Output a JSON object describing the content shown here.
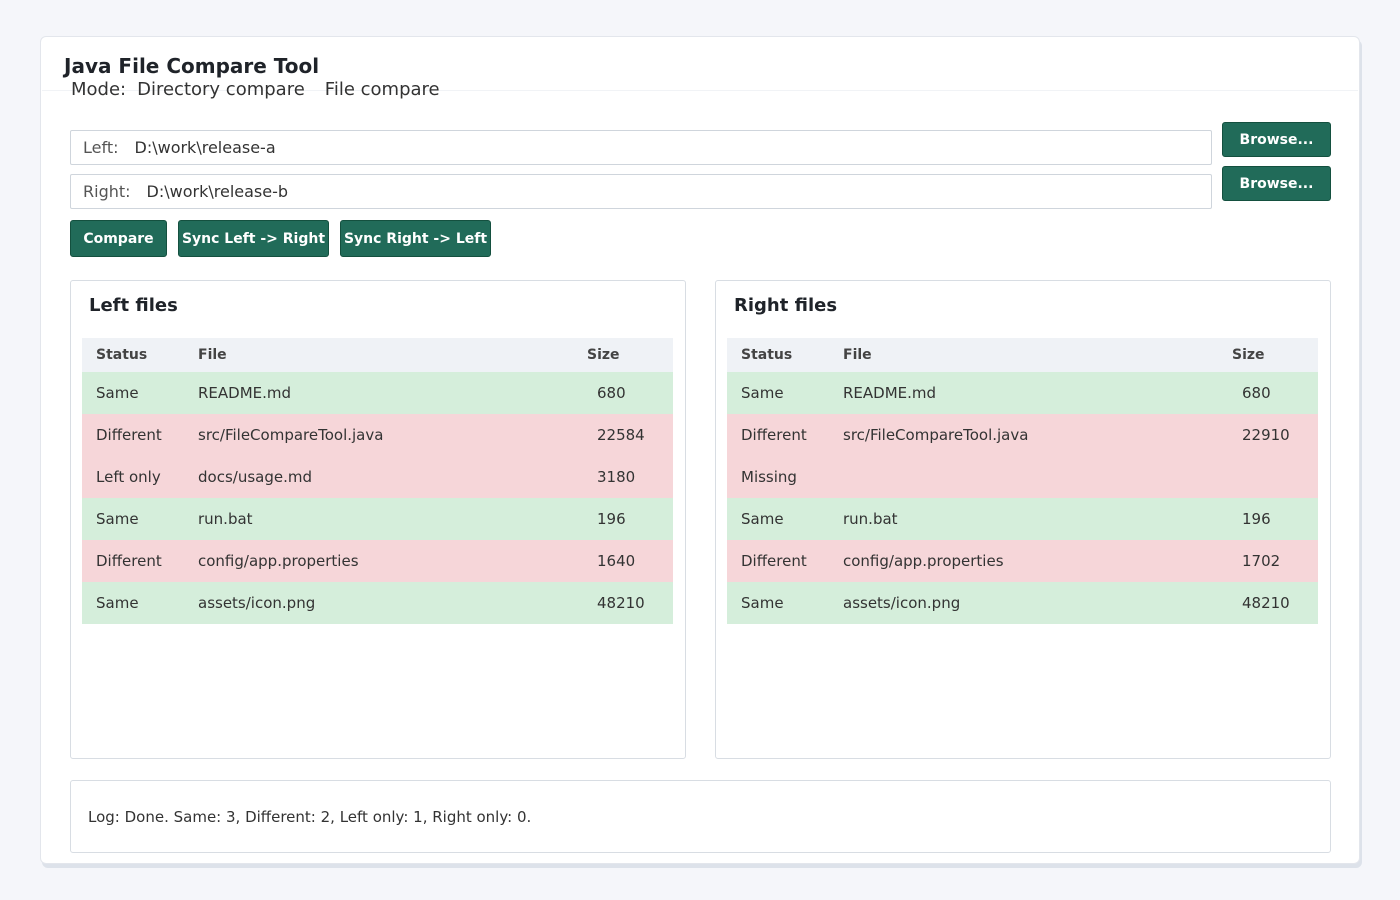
{
  "app": {
    "title": "Java File Compare Tool"
  },
  "mode": {
    "label": "Mode:",
    "options": [
      "Directory compare",
      "File compare"
    ]
  },
  "paths": {
    "left": {
      "label": "Left:",
      "value": "D:\\work\\release-a"
    },
    "right": {
      "label": "Right:",
      "value": "D:\\work\\release-b"
    },
    "browse_label": "Browse..."
  },
  "actions": {
    "compare": "Compare",
    "sync_lr": "Sync Left -> Right",
    "sync_rl": "Sync Right -> Left"
  },
  "columns": {
    "status": "Status",
    "file": "File",
    "size": "Size"
  },
  "left_panel": {
    "title": "Left files",
    "rows": [
      {
        "status": "Same",
        "file": "README.md",
        "size": "680"
      },
      {
        "status": "Different",
        "file": "src/FileCompareTool.java",
        "size": "22584"
      },
      {
        "status": "Left only",
        "file": "docs/usage.md",
        "size": "3180"
      },
      {
        "status": "Same",
        "file": "run.bat",
        "size": "196"
      },
      {
        "status": "Different",
        "file": "config/app.properties",
        "size": "1640"
      },
      {
        "status": "Same",
        "file": "assets/icon.png",
        "size": "48210"
      }
    ]
  },
  "right_panel": {
    "title": "Right files",
    "rows": [
      {
        "status": "Same",
        "file": "README.md",
        "size": "680"
      },
      {
        "status": "Different",
        "file": "src/FileCompareTool.java",
        "size": "22910"
      },
      {
        "status": "Missing",
        "file": "",
        "size": ""
      },
      {
        "status": "Same",
        "file": "run.bat",
        "size": "196"
      },
      {
        "status": "Different",
        "file": "config/app.properties",
        "size": "1702"
      },
      {
        "status": "Same",
        "file": "assets/icon.png",
        "size": "48210"
      }
    ]
  },
  "colors": {
    "accent": "#216b59",
    "same_row": "#d5eedb",
    "diff_row": "#f6d6d9"
  },
  "log": {
    "text": "Log: Done. Same: 3, Different: 2, Left only: 1, Right only: 0."
  }
}
